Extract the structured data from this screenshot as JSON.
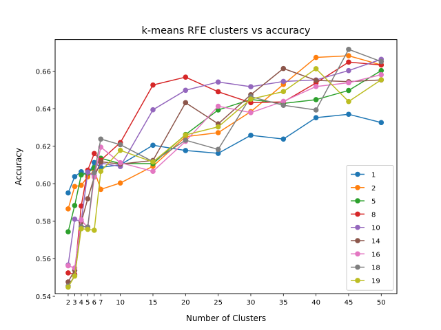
{
  "chart_data": {
    "type": "line",
    "title": "k-means RFE clusters vs accuracy",
    "xlabel": "Number of Clusters",
    "ylabel": "Accuracy",
    "x": [
      2,
      3,
      4,
      5,
      6,
      7,
      10,
      15,
      20,
      25,
      30,
      35,
      40,
      45,
      50
    ],
    "xticks": [
      2,
      3,
      4,
      5,
      6,
      7,
      10,
      15,
      20,
      25,
      30,
      35,
      40,
      45,
      50
    ],
    "xlim": [
      0.0,
      52.4
    ],
    "ylim": [
      0.5414,
      0.6768
    ],
    "yticks": [
      0.54,
      0.56,
      0.58,
      0.6,
      0.62,
      0.64,
      0.66
    ],
    "ytick_labels": [
      "0.54",
      "0.56",
      "0.58",
      "0.60",
      "0.62",
      "0.64",
      "0.66"
    ],
    "grid": false,
    "legend_position": "lower-right",
    "series": [
      {
        "name": "1",
        "color": "#1f77b4",
        "values": [
          0.5951,
          0.6038,
          0.6064,
          0.6045,
          0.6113,
          0.6087,
          0.6101,
          0.6205,
          0.6177,
          0.6162,
          0.6258,
          0.6238,
          0.6352,
          0.637,
          0.6326
        ]
      },
      {
        "name": "2",
        "color": "#ff7f0e",
        "values": [
          0.5866,
          0.5985,
          0.5992,
          0.6037,
          0.6071,
          0.597,
          0.6004,
          0.6093,
          0.6251,
          0.6272,
          0.6384,
          0.6529,
          0.6673,
          0.6682,
          0.6633
        ]
      },
      {
        "name": "5",
        "color": "#2ca02c",
        "values": [
          0.5744,
          0.5884,
          0.6047,
          0.6057,
          0.6086,
          0.6136,
          0.6107,
          0.6107,
          0.6262,
          0.6393,
          0.6449,
          0.6428,
          0.6448,
          0.6497,
          0.6603
        ]
      },
      {
        "name": "8",
        "color": "#d62728",
        "values": [
          0.5525,
          0.5517,
          0.5881,
          0.6072,
          0.6161,
          0.6125,
          0.6219,
          0.6526,
          0.6568,
          0.649,
          0.6432,
          0.6436,
          0.6537,
          0.6648,
          0.6633
        ]
      },
      {
        "name": "10",
        "color": "#9467bd",
        "values": [
          0.5567,
          0.5811,
          0.5797,
          0.6062,
          0.6041,
          0.611,
          0.6092,
          0.6394,
          0.6498,
          0.6542,
          0.6517,
          0.6545,
          0.6553,
          0.6603,
          0.6663
        ]
      },
      {
        "name": "14",
        "color": "#8c564b",
        "values": [
          0.5477,
          0.5539,
          0.5795,
          0.592,
          0.6036,
          0.6117,
          0.6105,
          0.6124,
          0.6432,
          0.6319,
          0.6474,
          0.6614,
          0.6551,
          0.6544,
          0.6553
        ]
      },
      {
        "name": "16",
        "color": "#e377c2",
        "values": [
          0.5563,
          0.5551,
          0.5808,
          0.5765,
          0.6036,
          0.6195,
          0.6112,
          0.6066,
          0.6226,
          0.6413,
          0.6379,
          0.6439,
          0.6518,
          0.6538,
          0.6581
        ]
      },
      {
        "name": "18",
        "color": "#7f7f7f",
        "values": [
          0.5455,
          0.551,
          0.5772,
          0.577,
          0.6059,
          0.6238,
          0.6208,
          0.6118,
          0.6232,
          0.6183,
          0.6464,
          0.6418,
          0.6393,
          0.6716,
          0.6651
        ]
      },
      {
        "name": "19",
        "color": "#bcbd22",
        "values": [
          0.5449,
          0.5508,
          0.576,
          0.5757,
          0.5752,
          0.6066,
          0.6178,
          0.6116,
          0.626,
          0.6303,
          0.6451,
          0.6491,
          0.6613,
          0.6438,
          0.6554
        ]
      }
    ]
  }
}
